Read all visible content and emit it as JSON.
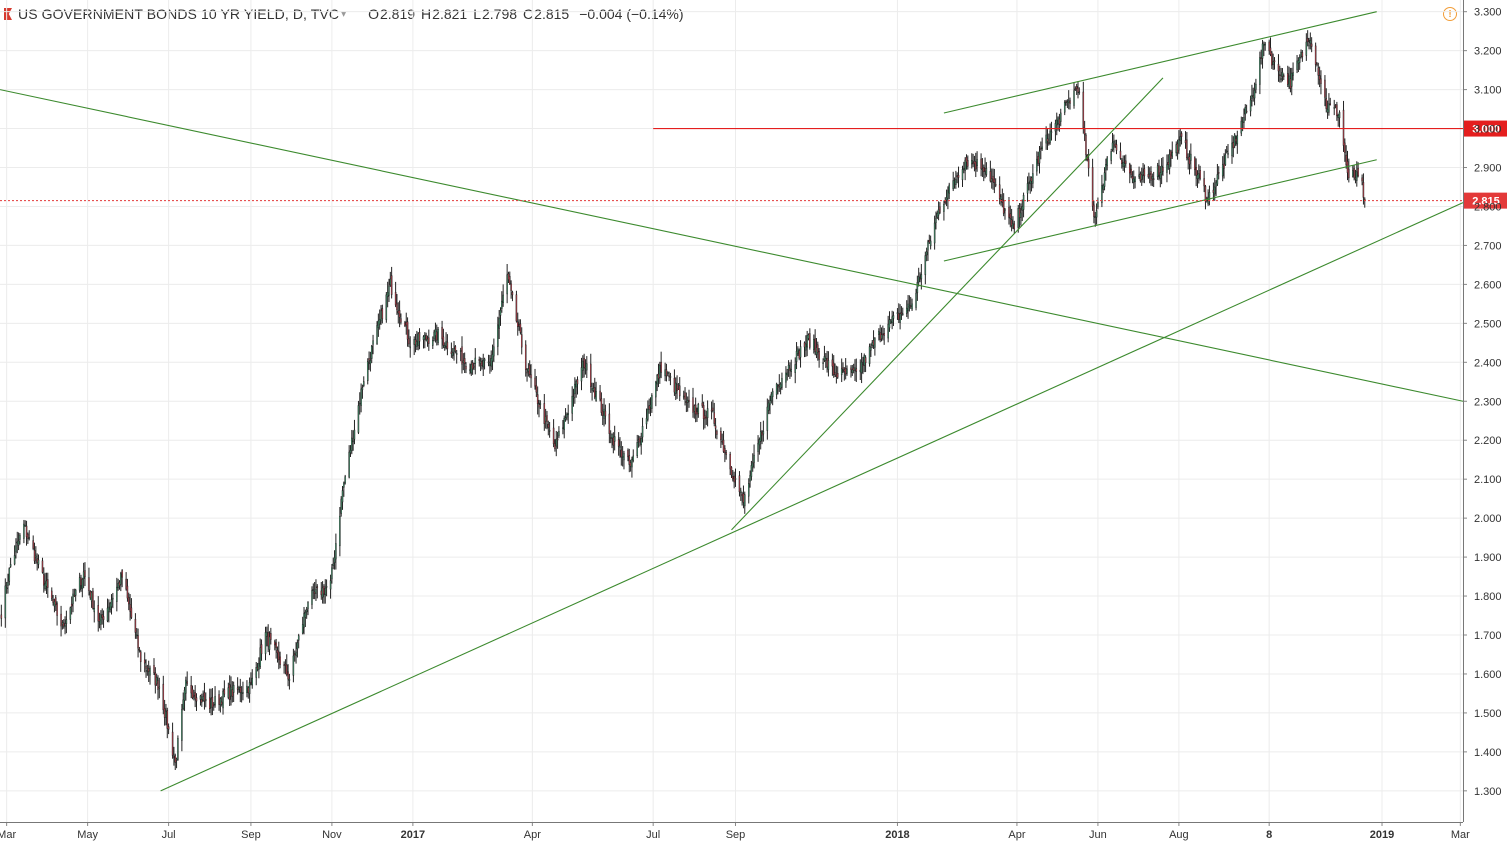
{
  "header": {
    "title": "US GOVERNMENT BONDS 10 YR YIELD, D, TVC",
    "open_label": "O",
    "open": "2.819",
    "high_label": "H",
    "high": "2.821",
    "low_label": "L",
    "low": "2.798",
    "close_label": "C",
    "close": "2.815",
    "change": "−0.004 (−0.14%)",
    "warning_icon": "warning-circle-icon"
  },
  "colors": {
    "up": "#53b987",
    "down": "#eb4d5c",
    "wick": "#222222",
    "trendline": "#3c8a2e",
    "resistance": "#e41e1e",
    "last_price": "#e33939"
  },
  "chart_data": {
    "type": "candlestick",
    "title": "US GOVERNMENT BONDS 10 YR YIELD, D, TVC",
    "yaxis_position": "right",
    "ylim": [
      1.22,
      3.33
    ],
    "yticks": [
      "1.300",
      "1.400",
      "1.500",
      "1.600",
      "1.700",
      "1.800",
      "1.900",
      "2.000",
      "2.100",
      "2.200",
      "2.300",
      "2.400",
      "2.500",
      "2.600",
      "2.700",
      "2.800",
      "2.900",
      "3.000",
      "3.100",
      "3.200",
      "3.300"
    ],
    "xlim": [
      "2016-02-25",
      "2019-03-03"
    ],
    "xticks": [
      {
        "label": "Mar",
        "date": "2016-03-01"
      },
      {
        "label": "May",
        "date": "2016-05-01"
      },
      {
        "label": "Jul",
        "date": "2016-07-01"
      },
      {
        "label": "Sep",
        "date": "2016-09-01"
      },
      {
        "label": "Nov",
        "date": "2016-11-01"
      },
      {
        "label": "2017",
        "date": "2017-01-01"
      },
      {
        "label": "Apr",
        "date": "2017-04-01"
      },
      {
        "label": "Jul",
        "date": "2017-07-01"
      },
      {
        "label": "Sep",
        "date": "2017-09-01"
      },
      {
        "label": "2018",
        "date": "2018-01-01"
      },
      {
        "label": "Apr",
        "date": "2018-04-01"
      },
      {
        "label": "Jun",
        "date": "2018-06-01"
      },
      {
        "label": "Aug",
        "date": "2018-08-01"
      },
      {
        "label": "8",
        "date": "2018-10-08"
      },
      {
        "label": "2019",
        "date": "2019-01-01"
      },
      {
        "label": "Mar",
        "date": "2019-03-01"
      }
    ],
    "close_path": [
      [
        "2016-02-26",
        1.76
      ],
      [
        "2016-03-04",
        1.88
      ],
      [
        "2016-03-14",
        1.98
      ],
      [
        "2016-03-28",
        1.85
      ],
      [
        "2016-04-12",
        1.72
      ],
      [
        "2016-04-28",
        1.86
      ],
      [
        "2016-05-10",
        1.73
      ],
      [
        "2016-05-27",
        1.85
      ],
      [
        "2016-06-10",
        1.64
      ],
      [
        "2016-06-24",
        1.57
      ],
      [
        "2016-07-06",
        1.37
      ],
      [
        "2016-07-14",
        1.57
      ],
      [
        "2016-08-01",
        1.52
      ],
      [
        "2016-08-15",
        1.55
      ],
      [
        "2016-09-01",
        1.57
      ],
      [
        "2016-09-12",
        1.7
      ],
      [
        "2016-09-30",
        1.59
      ],
      [
        "2016-10-14",
        1.79
      ],
      [
        "2016-10-31",
        1.83
      ],
      [
        "2016-11-09",
        2.07
      ],
      [
        "2016-11-25",
        2.36
      ],
      [
        "2016-12-15",
        2.6
      ],
      [
        "2016-12-30",
        2.45
      ],
      [
        "2017-01-20",
        2.47
      ],
      [
        "2017-02-10",
        2.4
      ],
      [
        "2017-02-28",
        2.39
      ],
      [
        "2017-03-13",
        2.62
      ],
      [
        "2017-03-28",
        2.38
      ],
      [
        "2017-04-18",
        2.18
      ],
      [
        "2017-05-10",
        2.4
      ],
      [
        "2017-05-31",
        2.21
      ],
      [
        "2017-06-14",
        2.13
      ],
      [
        "2017-07-07",
        2.39
      ],
      [
        "2017-07-26",
        2.29
      ],
      [
        "2017-08-15",
        2.26
      ],
      [
        "2017-09-07",
        2.04
      ],
      [
        "2017-09-29",
        2.33
      ],
      [
        "2017-10-26",
        2.46
      ],
      [
        "2017-11-15",
        2.37
      ],
      [
        "2017-12-01",
        2.37
      ],
      [
        "2017-12-20",
        2.48
      ],
      [
        "2018-01-12",
        2.55
      ],
      [
        "2018-02-01",
        2.79
      ],
      [
        "2018-02-21",
        2.92
      ],
      [
        "2018-03-09",
        2.9
      ],
      [
        "2018-03-29",
        2.74
      ],
      [
        "2018-04-20",
        2.95
      ],
      [
        "2018-05-17",
        3.11
      ],
      [
        "2018-05-29",
        2.77
      ],
      [
        "2018-06-12",
        2.97
      ],
      [
        "2018-06-29",
        2.86
      ],
      [
        "2018-07-20",
        2.9
      ],
      [
        "2018-08-03",
        2.97
      ],
      [
        "2018-08-23",
        2.82
      ],
      [
        "2018-09-12",
        2.97
      ],
      [
        "2018-09-25",
        3.08
      ],
      [
        "2018-10-05",
        3.23
      ],
      [
        "2018-10-12",
        3.16
      ],
      [
        "2018-10-24",
        3.12
      ],
      [
        "2018-11-08",
        3.24
      ],
      [
        "2018-11-20",
        3.06
      ],
      [
        "2018-11-30",
        3.04
      ],
      [
        "2018-12-03",
        2.96
      ],
      [
        "2018-12-07",
        2.86
      ],
      [
        "2018-12-10",
        2.88
      ],
      [
        "2018-12-14",
        2.87
      ],
      [
        "2018-12-17",
        2.85
      ],
      [
        "2018-12-19",
        2.815
      ]
    ],
    "last_close": 2.815,
    "last_close_label": "2.815",
    "lines": [
      {
        "type": "horizontal",
        "y": 3.0,
        "label": "3.000",
        "start": "2017-07-01"
      },
      {
        "type": "trendline",
        "points": [
          [
            "2016-06-25",
            1.3
          ],
          [
            "2019-03-03",
            2.81
          ]
        ]
      },
      {
        "type": "trendline",
        "points": [
          [
            "2016-02-25",
            3.1
          ],
          [
            "2019-03-03",
            2.3
          ]
        ]
      },
      {
        "type": "trendline",
        "points": [
          [
            "2017-08-29",
            1.97
          ],
          [
            "2018-07-20",
            3.13
          ]
        ]
      },
      {
        "type": "trendline",
        "points": [
          [
            "2018-02-05",
            2.66
          ],
          [
            "2018-12-28",
            2.92
          ]
        ]
      },
      {
        "type": "trendline",
        "points": [
          [
            "2018-02-05",
            3.04
          ],
          [
            "2018-12-28",
            3.3
          ]
        ]
      }
    ]
  }
}
